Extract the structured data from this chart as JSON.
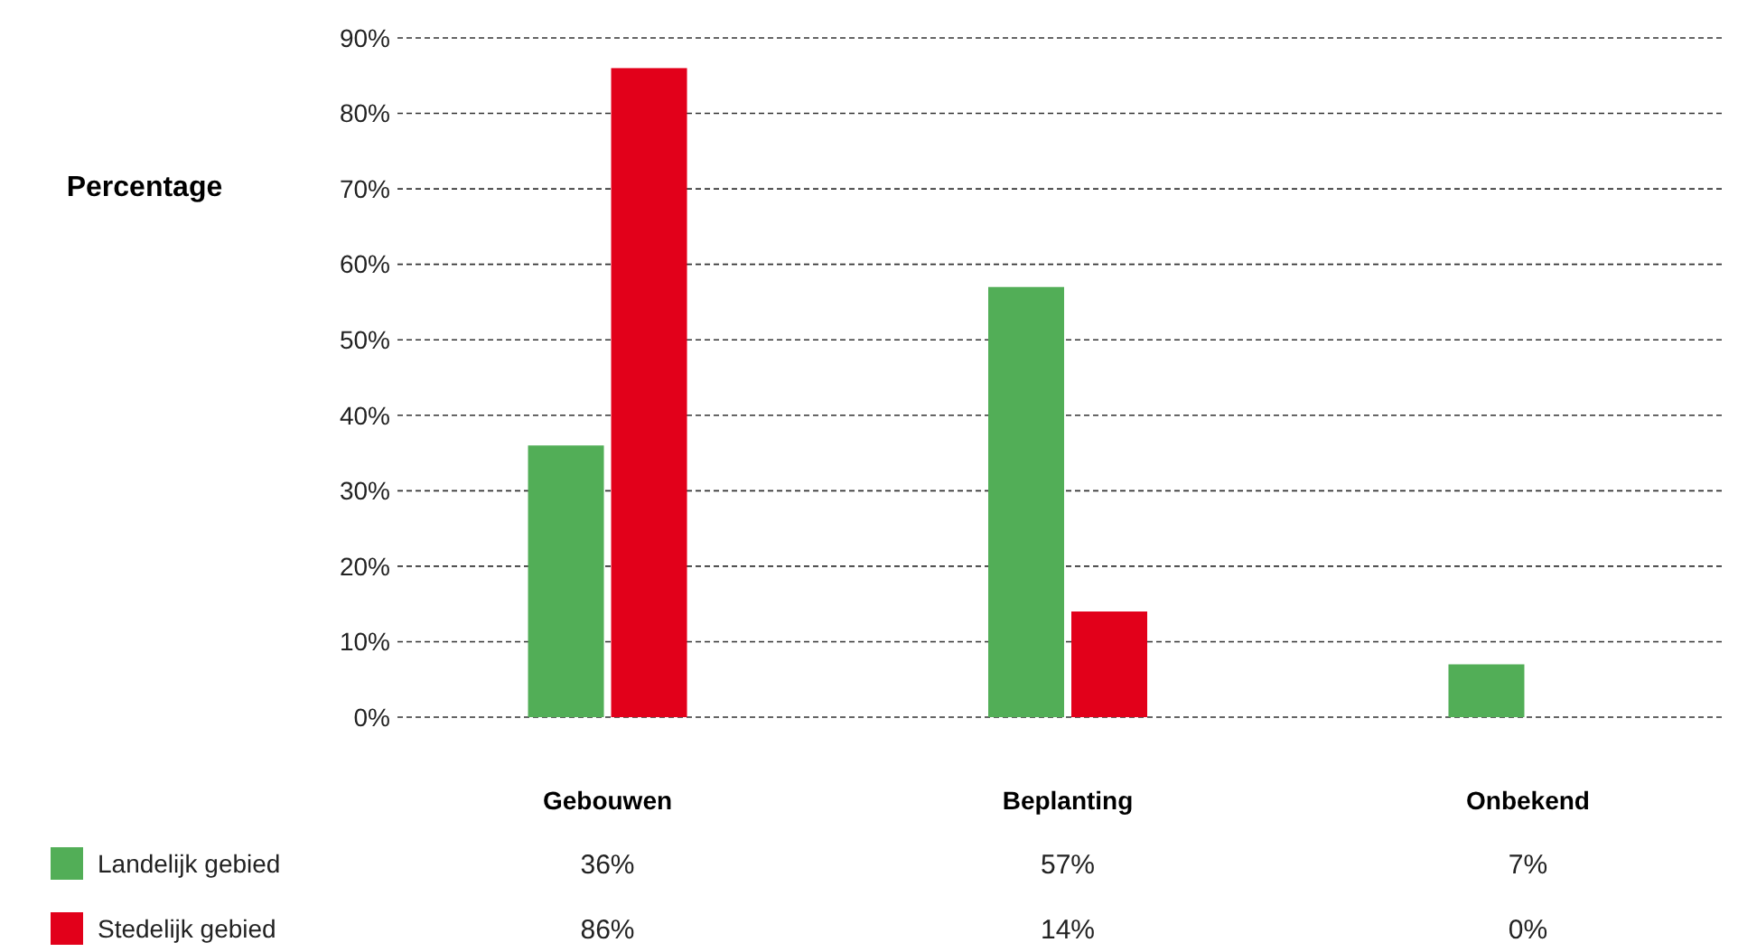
{
  "chart_data": {
    "type": "bar",
    "ylabel": "Percentage",
    "categories": [
      "Gebouwen",
      "Beplanting",
      "Onbekend"
    ],
    "series": [
      {
        "name": "Landelijk gebied",
        "color": "#52ae57",
        "values": [
          36,
          57,
          7
        ],
        "value_labels": [
          "36%",
          "57%",
          "7%"
        ]
      },
      {
        "name": "Stedelijk gebied",
        "color": "#e2001a",
        "values": [
          86,
          14,
          0
        ],
        "value_labels": [
          "86%",
          "14%",
          "0%"
        ]
      }
    ],
    "ylim": [
      0,
      90
    ],
    "yticks": [
      {
        "value": 0,
        "label": "0%"
      },
      {
        "value": 10,
        "label": "10%"
      },
      {
        "value": 20,
        "label": "20%"
      },
      {
        "value": 30,
        "label": "30%"
      },
      {
        "value": 40,
        "label": "40%"
      },
      {
        "value": 50,
        "label": "50%"
      },
      {
        "value": 60,
        "label": "60%"
      },
      {
        "value": 70,
        "label": "70%"
      },
      {
        "value": 80,
        "label": "80%"
      },
      {
        "value": 90,
        "label": "90%"
      }
    ],
    "grid": "y",
    "legend": "bottom left"
  }
}
